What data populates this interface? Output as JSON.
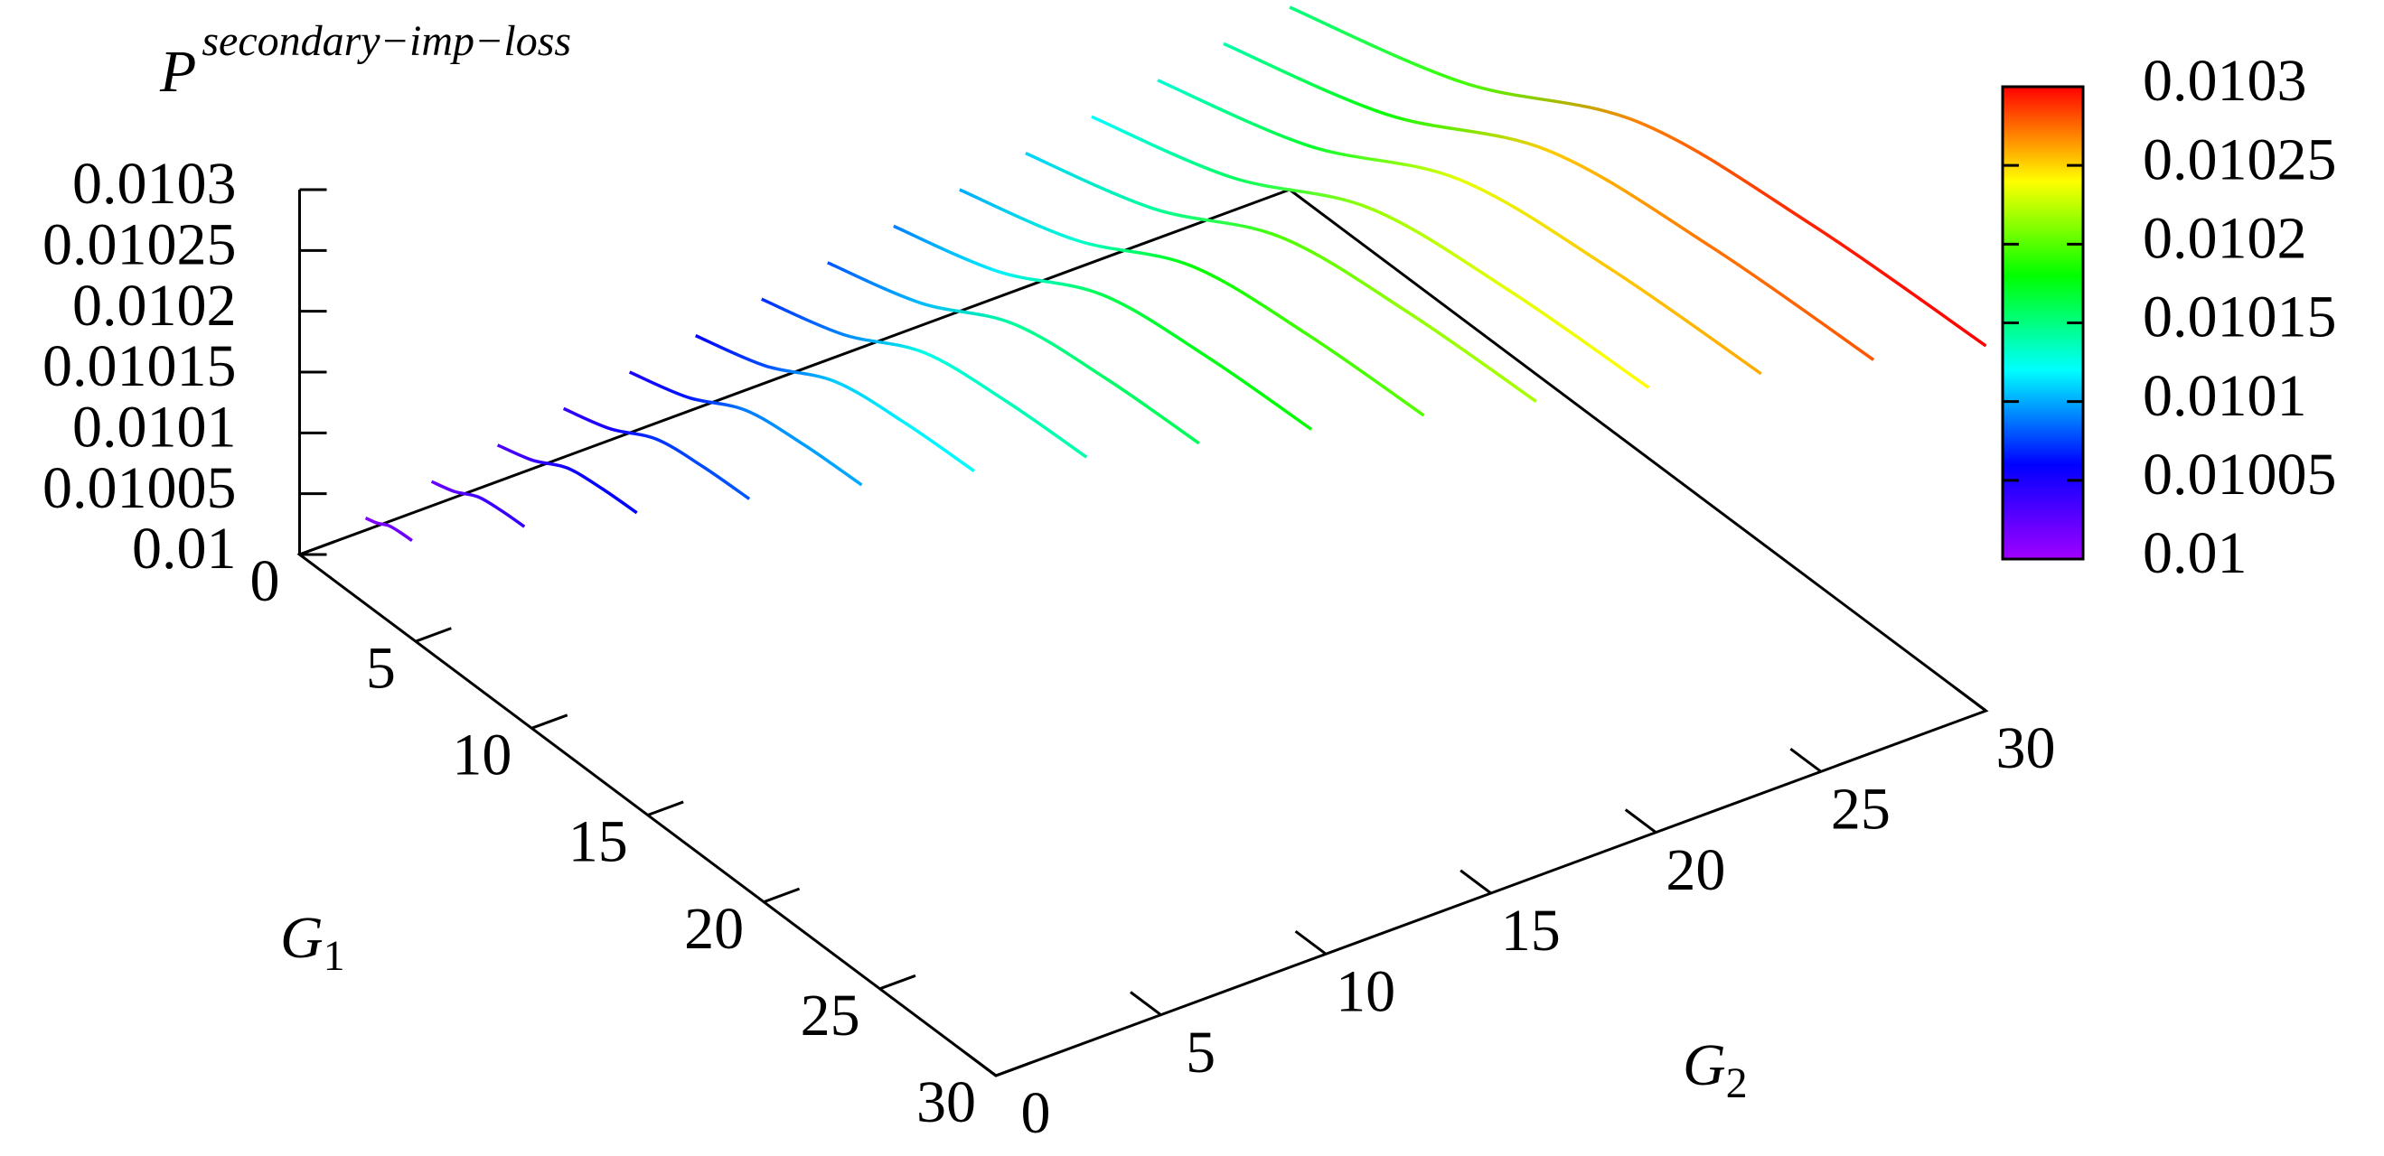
{
  "chart_data": {
    "type": "surface3d",
    "title": "P",
    "title_superscript": "secondary−imp−loss",
    "x_label": "G",
    "x_label_sub": "1",
    "y_label": "G",
    "y_label_sub": "2",
    "g1lim": [
      0,
      30
    ],
    "g1ticks": [
      0,
      5,
      10,
      15,
      20,
      25,
      30
    ],
    "g2lim": [
      0,
      30
    ],
    "g2ticks": [
      0,
      5,
      10,
      15,
      20,
      25,
      30
    ],
    "zlim": [
      0.01,
      0.0103
    ],
    "zticks": [
      0.01,
      0.01005,
      0.0101,
      0.01015,
      0.0102,
      0.01025,
      0.0103
    ],
    "cblim": [
      0.01,
      0.0103
    ],
    "cbticks": [
      0.01,
      0.01005,
      0.0101,
      0.01015,
      0.0102,
      0.01025,
      0.0103
    ],
    "palette": [
      "#a000ff",
      "#0000ff",
      "#00ffff",
      "#00ff00",
      "#ffff00",
      "#ff0000"
    ],
    "series": [
      {
        "g2": 2,
        "g1": [
          0,
          0.5,
          1,
          1.5,
          2
        ],
        "values": [
          0.01001,
          0.010013,
          0.010018,
          0.0100195,
          0.01002
        ]
      },
      {
        "g2": 4,
        "g1": [
          0,
          1,
          2,
          3,
          4
        ],
        "values": [
          0.01002,
          0.010026,
          0.010036,
          0.010039,
          0.01004
        ]
      },
      {
        "g2": 6,
        "g1": [
          0,
          1.5,
          3,
          4.5,
          6
        ],
        "values": [
          0.01003,
          0.010039,
          0.010054,
          0.0100585,
          0.01006
        ]
      },
      {
        "g2": 8,
        "g1": [
          0,
          2,
          4,
          6,
          8
        ],
        "values": [
          0.01004,
          0.010052,
          0.010072,
          0.010078,
          0.01008
        ]
      },
      {
        "g2": 10,
        "g1": [
          0,
          2.5,
          5,
          7.5,
          10
        ],
        "values": [
          0.01005,
          0.010065,
          0.01009,
          0.0100975,
          0.0101
        ]
      },
      {
        "g2": 12,
        "g1": [
          0,
          3,
          6,
          9,
          12
        ],
        "values": [
          0.01006,
          0.010078,
          0.010108,
          0.010117,
          0.01012
        ]
      },
      {
        "g2": 14,
        "g1": [
          0,
          3.5,
          7,
          10.5,
          14
        ],
        "values": [
          0.01007,
          0.010091,
          0.010126,
          0.0101365,
          0.01014
        ]
      },
      {
        "g2": 16,
        "g1": [
          0,
          4,
          8,
          12,
          16
        ],
        "values": [
          0.01008,
          0.010104,
          0.010144,
          0.010156,
          0.01016
        ]
      },
      {
        "g2": 18,
        "g1": [
          0,
          4.5,
          9,
          13.5,
          18
        ],
        "values": [
          0.01009,
          0.010117,
          0.010162,
          0.0101755,
          0.01018
        ]
      },
      {
        "g2": 20,
        "g1": [
          0,
          5,
          10,
          15,
          20
        ],
        "values": [
          0.0101,
          0.01013,
          0.01018,
          0.010195,
          0.0102
        ]
      },
      {
        "g2": 22,
        "g1": [
          0,
          5.5,
          11,
          16.5,
          22
        ],
        "values": [
          0.01011,
          0.010143,
          0.010198,
          0.0102145,
          0.01022
        ]
      },
      {
        "g2": 24,
        "g1": [
          0,
          6,
          12,
          18,
          24
        ],
        "values": [
          0.01012,
          0.010156,
          0.010216,
          0.010234,
          0.01024
        ]
      },
      {
        "g2": 26,
        "g1": [
          0,
          6.5,
          13,
          19.5,
          26
        ],
        "values": [
          0.01013,
          0.010169,
          0.010234,
          0.0102535,
          0.01026
        ]
      },
      {
        "g2": 28,
        "g1": [
          0,
          7,
          14,
          21,
          28
        ],
        "values": [
          0.01014,
          0.010182,
          0.010252,
          0.010273,
          0.01028
        ]
      },
      {
        "g2": 30,
        "g1": [
          0,
          7.5,
          15,
          22.5,
          30
        ],
        "values": [
          0.01015,
          0.010195,
          0.01027,
          0.0102925,
          0.0103
        ]
      }
    ]
  }
}
